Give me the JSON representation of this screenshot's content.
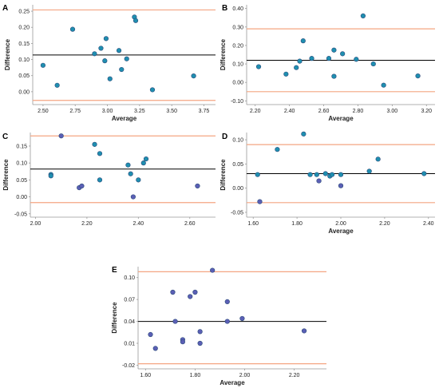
{
  "style": {
    "limit_line_color": "#f4a582",
    "mean_line_color": "#000000",
    "point_fill_teal": "#1f8fb0",
    "point_fill_violet": "#5b5fb5",
    "point_stroke": "#2b4a7a",
    "axis_color": "#999999"
  },
  "chart_data": [
    {
      "type": "scatter",
      "panel": "A",
      "xlabel": "Average",
      "ylabel": "Difference",
      "xlim": [
        2.42,
        3.84
      ],
      "ylim": [
        -0.04,
        0.27
      ],
      "xticks": [
        2.5,
        2.75,
        3.0,
        3.25,
        3.5,
        3.75
      ],
      "xtick_labels": [
        "2.50",
        "2.75",
        "3.00",
        "3.25",
        "3.50",
        "3.75"
      ],
      "yticks": [
        0.0,
        0.05,
        0.1,
        0.15,
        0.2,
        0.25
      ],
      "ytick_labels": [
        "0.00",
        "0.05",
        "0.10",
        "0.15",
        "0.20",
        "0.25"
      ],
      "mean_line": 0.114,
      "upper_limit": 0.254,
      "lower_limit": -0.027,
      "point_color": "teal",
      "points": [
        {
          "x": 2.5,
          "y": 0.082
        },
        {
          "x": 2.61,
          "y": 0.02
        },
        {
          "x": 2.73,
          "y": 0.194
        },
        {
          "x": 2.9,
          "y": 0.118
        },
        {
          "x": 2.95,
          "y": 0.135
        },
        {
          "x": 2.98,
          "y": 0.096
        },
        {
          "x": 2.99,
          "y": 0.165
        },
        {
          "x": 3.02,
          "y": 0.04
        },
        {
          "x": 3.09,
          "y": 0.128
        },
        {
          "x": 3.11,
          "y": 0.069
        },
        {
          "x": 3.15,
          "y": 0.102
        },
        {
          "x": 3.21,
          "y": 0.232
        },
        {
          "x": 3.22,
          "y": 0.221
        },
        {
          "x": 3.35,
          "y": 0.006
        },
        {
          "x": 3.67,
          "y": 0.049
        }
      ]
    },
    {
      "type": "scatter",
      "panel": "B",
      "xlabel": "Average",
      "ylabel": "Difference",
      "xlim": [
        2.15,
        3.25
      ],
      "ylim": [
        -0.12,
        0.42
      ],
      "xticks": [
        2.2,
        2.4,
        2.6,
        2.8,
        3.0,
        3.2
      ],
      "xtick_labels": [
        "2.20",
        "2.40",
        "2.60",
        "2.80",
        "3.00",
        "3.20"
      ],
      "yticks": [
        -0.1,
        0.0,
        0.1,
        0.2,
        0.3,
        0.4
      ],
      "ytick_labels": [
        "-0.10",
        "0.00",
        "0.10",
        "0.20",
        "0.30",
        "0.40"
      ],
      "mean_line": 0.12,
      "upper_limit": 0.29,
      "lower_limit": -0.05,
      "point_color": "teal",
      "points": [
        {
          "x": 2.22,
          "y": 0.085
        },
        {
          "x": 2.38,
          "y": 0.045
        },
        {
          "x": 2.44,
          "y": 0.08
        },
        {
          "x": 2.46,
          "y": 0.115
        },
        {
          "x": 2.48,
          "y": 0.225
        },
        {
          "x": 2.53,
          "y": 0.13
        },
        {
          "x": 2.63,
          "y": 0.13
        },
        {
          "x": 2.66,
          "y": 0.175
        },
        {
          "x": 2.66,
          "y": 0.033
        },
        {
          "x": 2.71,
          "y": 0.155
        },
        {
          "x": 2.79,
          "y": 0.125
        },
        {
          "x": 2.83,
          "y": 0.36
        },
        {
          "x": 2.89,
          "y": 0.1
        },
        {
          "x": 2.95,
          "y": -0.015
        },
        {
          "x": 3.15,
          "y": 0.035
        }
      ]
    },
    {
      "type": "scatter",
      "panel": "C",
      "xlabel": "",
      "ylabel": "Difference",
      "xlim": [
        1.98,
        2.7
      ],
      "ylim": [
        -0.06,
        0.19
      ],
      "xticks": [
        2.0,
        2.2,
        2.4,
        2.6
      ],
      "xtick_labels": [
        "2.00",
        "2.20",
        "2.40",
        "2.60"
      ],
      "yticks": [
        -0.05,
        0.0,
        0.05,
        0.1,
        0.15
      ],
      "ytick_labels": [
        "-0.05",
        "0.00",
        "0.05",
        "0.10",
        "0.15"
      ],
      "mean_line": 0.082,
      "upper_limit": 0.18,
      "lower_limit": -0.017,
      "point_color": "mixed",
      "points": [
        {
          "x": 2.06,
          "y": 0.066,
          "c": "teal"
        },
        {
          "x": 2.06,
          "y": 0.062,
          "c": "teal"
        },
        {
          "x": 2.1,
          "y": 0.18,
          "c": "violet"
        },
        {
          "x": 2.17,
          "y": 0.027,
          "c": "violet"
        },
        {
          "x": 2.18,
          "y": 0.032,
          "c": "violet"
        },
        {
          "x": 2.23,
          "y": 0.155,
          "c": "teal"
        },
        {
          "x": 2.25,
          "y": 0.128,
          "c": "teal"
        },
        {
          "x": 2.25,
          "y": 0.05,
          "c": "teal"
        },
        {
          "x": 2.36,
          "y": 0.094,
          "c": "teal"
        },
        {
          "x": 2.37,
          "y": 0.068,
          "c": "teal"
        },
        {
          "x": 2.38,
          "y": 0.0,
          "c": "violet"
        },
        {
          "x": 2.4,
          "y": 0.05,
          "c": "teal"
        },
        {
          "x": 2.42,
          "y": 0.1,
          "c": "teal"
        },
        {
          "x": 2.43,
          "y": 0.112,
          "c": "teal"
        },
        {
          "x": 2.63,
          "y": 0.032,
          "c": "violet"
        }
      ]
    },
    {
      "type": "scatter",
      "panel": "D",
      "xlabel": "Average",
      "ylabel": "Difference",
      "xlim": [
        1.57,
        2.43
      ],
      "ylim": [
        -0.06,
        0.115
      ],
      "xticks": [
        1.6,
        1.8,
        2.0,
        2.2,
        2.4
      ],
      "xtick_labels": [
        "1.60",
        "1.80",
        "2.00",
        "2.20",
        "2.40"
      ],
      "yticks": [
        -0.05,
        0.0,
        0.05,
        0.1
      ],
      "ytick_labels": [
        "-0.05",
        "0.00",
        "0.05",
        "0.10"
      ],
      "mean_line": 0.03,
      "upper_limit": 0.09,
      "lower_limit": -0.03,
      "point_color": "mixed",
      "points": [
        {
          "x": 1.62,
          "y": 0.028,
          "c": "teal"
        },
        {
          "x": 1.63,
          "y": -0.028,
          "c": "violet"
        },
        {
          "x": 1.71,
          "y": 0.08,
          "c": "teal"
        },
        {
          "x": 1.83,
          "y": 0.112,
          "c": "teal"
        },
        {
          "x": 1.86,
          "y": 0.028,
          "c": "teal"
        },
        {
          "x": 1.89,
          "y": 0.028,
          "c": "teal"
        },
        {
          "x": 1.9,
          "y": 0.015,
          "c": "violet"
        },
        {
          "x": 1.93,
          "y": 0.03,
          "c": "teal"
        },
        {
          "x": 1.95,
          "y": 0.025,
          "c": "teal"
        },
        {
          "x": 1.96,
          "y": 0.028,
          "c": "teal"
        },
        {
          "x": 2.0,
          "y": 0.028,
          "c": "teal"
        },
        {
          "x": 2.0,
          "y": 0.005,
          "c": "violet"
        },
        {
          "x": 2.13,
          "y": 0.035,
          "c": "teal"
        },
        {
          "x": 2.17,
          "y": 0.06,
          "c": "teal"
        },
        {
          "x": 2.38,
          "y": 0.03,
          "c": "teal"
        }
      ]
    },
    {
      "type": "scatter",
      "panel": "E",
      "xlabel": "Average",
      "ylabel": "Difference",
      "xlim": [
        1.57,
        2.33
      ],
      "ylim": [
        -0.025,
        0.115
      ],
      "xticks": [
        1.6,
        1.8,
        2.0,
        2.2
      ],
      "xtick_labels": [
        "1.60",
        "1.80",
        "2.00",
        "2.20"
      ],
      "yticks": [
        -0.02,
        0.01,
        0.04,
        0.07,
        0.1
      ],
      "ytick_labels": [
        "-0.02",
        "0.01",
        "0.04",
        "0.07",
        "0.10"
      ],
      "mean_line": 0.04,
      "upper_limit": 0.108,
      "lower_limit": -0.018,
      "point_color": "violet",
      "points": [
        {
          "x": 1.62,
          "y": 0.022
        },
        {
          "x": 1.64,
          "y": 0.003
        },
        {
          "x": 1.71,
          "y": 0.08
        },
        {
          "x": 1.72,
          "y": 0.04
        },
        {
          "x": 1.75,
          "y": 0.015
        },
        {
          "x": 1.75,
          "y": 0.012
        },
        {
          "x": 1.78,
          "y": 0.074
        },
        {
          "x": 1.8,
          "y": 0.08
        },
        {
          "x": 1.82,
          "y": 0.026
        },
        {
          "x": 1.82,
          "y": 0.01
        },
        {
          "x": 1.87,
          "y": 0.11
        },
        {
          "x": 1.93,
          "y": 0.067
        },
        {
          "x": 1.93,
          "y": 0.04
        },
        {
          "x": 1.99,
          "y": 0.044
        },
        {
          "x": 2.24,
          "y": 0.027
        }
      ]
    }
  ]
}
